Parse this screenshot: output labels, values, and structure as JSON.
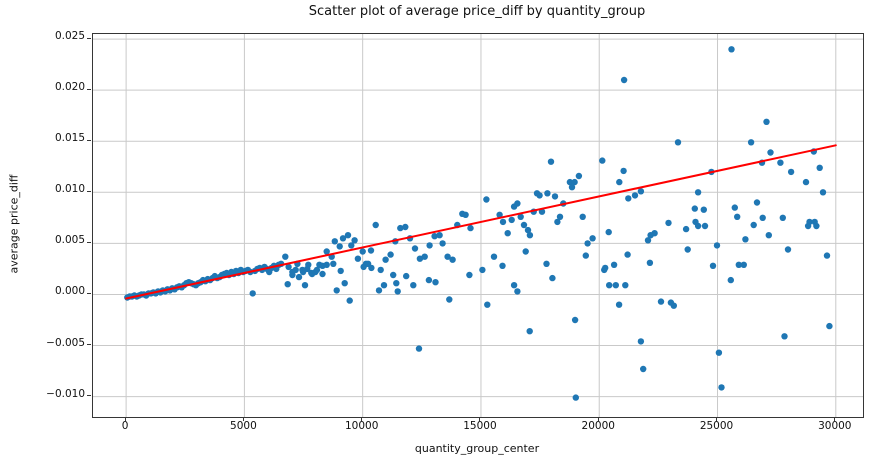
{
  "chart_data": {
    "type": "scatter",
    "title": "Scatter plot of average price_diff by quantity_group",
    "xlabel": "quantity_group_center",
    "ylabel": "average price_diff",
    "xlim": [
      -1400,
      31150
    ],
    "ylim": [
      -0.012,
      0.0255
    ],
    "xticks": [
      0,
      5000,
      10000,
      15000,
      20000,
      25000,
      30000
    ],
    "yticks": [
      -0.01,
      -0.005,
      0.0,
      0.005,
      0.01,
      0.015,
      0.02,
      0.025
    ],
    "grid": true,
    "grid_color": "#c9c9c9",
    "background_color": "#ffffff",
    "series": [
      {
        "name": "average price_diff by quantity group",
        "type": "scatter",
        "color": "#1f77b4",
        "marker_radius": 3.2,
        "points": [
          [
            50,
            -0.0003
          ],
          [
            150,
            -0.0002
          ],
          [
            250,
            -0.0002
          ],
          [
            350,
            -0.0001
          ],
          [
            450,
            -0.0002
          ],
          [
            550,
            -0.0001
          ],
          [
            650,
            0.0
          ],
          [
            750,
            0.0
          ],
          [
            850,
            -0.0001
          ],
          [
            950,
            0.0001
          ],
          [
            1050,
            0.0001
          ],
          [
            1150,
            0.0002
          ],
          [
            1250,
            0.0001
          ],
          [
            1350,
            0.0003
          ],
          [
            1450,
            0.0002
          ],
          [
            1550,
            0.0004
          ],
          [
            1650,
            0.0003
          ],
          [
            1750,
            0.0005
          ],
          [
            1850,
            0.0004
          ],
          [
            1950,
            0.0006
          ],
          [
            2050,
            0.0005
          ],
          [
            2150,
            0.0007
          ],
          [
            2250,
            0.0008
          ],
          [
            2350,
            0.0007
          ],
          [
            2450,
            0.0009
          ],
          [
            2550,
            0.0011
          ],
          [
            2650,
            0.0012
          ],
          [
            2750,
            0.0011
          ],
          [
            2850,
            0.001
          ],
          [
            2950,
            0.0009
          ],
          [
            3050,
            0.0011
          ],
          [
            3150,
            0.0012
          ],
          [
            3250,
            0.0014
          ],
          [
            3350,
            0.0013
          ],
          [
            3450,
            0.0015
          ],
          [
            3550,
            0.0014
          ],
          [
            3650,
            0.0016
          ],
          [
            3750,
            0.0018
          ],
          [
            3850,
            0.0016
          ],
          [
            3950,
            0.0017
          ],
          [
            4050,
            0.0019
          ],
          [
            4150,
            0.002
          ],
          [
            4250,
            0.0021
          ],
          [
            4350,
            0.0019
          ],
          [
            4450,
            0.0022
          ],
          [
            4550,
            0.002
          ],
          [
            4650,
            0.0023
          ],
          [
            4750,
            0.0021
          ],
          [
            4850,
            0.0024
          ],
          [
            4950,
            0.0022
          ],
          [
            5050,
            0.0023
          ],
          [
            5150,
            0.0024
          ],
          [
            5250,
            0.0022
          ],
          [
            5350,
            0.0001
          ],
          [
            5450,
            0.0023
          ],
          [
            5550,
            0.0025
          ],
          [
            5650,
            0.0026
          ],
          [
            5750,
            0.0024
          ],
          [
            5850,
            0.0027
          ],
          [
            5950,
            0.0025
          ],
          [
            6050,
            0.0022
          ],
          [
            6150,
            0.0026
          ],
          [
            6250,
            0.0028
          ],
          [
            6350,
            0.0025
          ],
          [
            6450,
            0.0029
          ],
          [
            6550,
            0.003
          ],
          [
            6730,
            0.0037
          ],
          [
            6870,
            0.0027
          ],
          [
            7030,
            0.0022
          ],
          [
            7240,
            0.003
          ],
          [
            7450,
            0.0024
          ],
          [
            7660,
            0.0025
          ],
          [
            7860,
            0.002
          ],
          [
            8070,
            0.0024
          ],
          [
            8300,
            0.002
          ],
          [
            8480,
            0.0042
          ],
          [
            8690,
            0.0037
          ],
          [
            8820,
            0.0052
          ],
          [
            9030,
            0.0047
          ],
          [
            9170,
            0.0055
          ],
          [
            9380,
            0.0058
          ],
          [
            9520,
            0.0048
          ],
          [
            9660,
            0.0053
          ],
          [
            9800,
            0.0035
          ],
          [
            10000,
            0.0042
          ],
          [
            10140,
            0.003
          ],
          [
            10350,
            0.0043
          ],
          [
            10550,
            0.0068
          ],
          [
            10760,
            0.0024
          ],
          [
            10970,
            0.0034
          ],
          [
            11180,
            0.0039
          ],
          [
            11380,
            0.0052
          ],
          [
            11590,
            0.0065
          ],
          [
            11800,
            0.0066
          ],
          [
            12000,
            0.0055
          ],
          [
            12210,
            0.0045
          ],
          [
            12420,
            0.0035
          ],
          [
            12620,
            0.0037
          ],
          [
            12830,
            0.0048
          ],
          [
            13040,
            0.0057
          ],
          [
            13250,
            0.0058
          ],
          [
            13380,
            0.005
          ],
          [
            13590,
            0.0037
          ],
          [
            13800,
            0.0034
          ],
          [
            14000,
            0.0068
          ],
          [
            14210,
            0.0079
          ],
          [
            14350,
            0.0078
          ],
          [
            14560,
            0.0065
          ],
          [
            6830,
            0.001
          ],
          [
            7030,
            0.0019
          ],
          [
            7170,
            0.0024
          ],
          [
            7310,
            0.0017
          ],
          [
            7480,
            0.0022
          ],
          [
            7560,
            0.0009
          ],
          [
            7700,
            0.0029
          ],
          [
            7830,
            0.0021
          ],
          [
            8000,
            0.0022
          ],
          [
            8170,
            0.0029
          ],
          [
            8300,
            0.0028
          ],
          [
            8480,
            0.0029
          ],
          [
            8760,
            0.003
          ],
          [
            8900,
            0.0004
          ],
          [
            9070,
            0.0023
          ],
          [
            9240,
            0.0011
          ],
          [
            9450,
            -0.0006
          ],
          [
            10040,
            0.0027
          ],
          [
            10230,
            0.003
          ],
          [
            10370,
            0.0026
          ],
          [
            10690,
            0.0004
          ],
          [
            10900,
            0.0009
          ],
          [
            11290,
            0.0019
          ],
          [
            11420,
            0.0011
          ],
          [
            11480,
            0.0003
          ],
          [
            11840,
            0.0018
          ],
          [
            12140,
            0.0009
          ],
          [
            12380,
            -0.0053
          ],
          [
            12800,
            0.0014
          ],
          [
            13080,
            0.0012
          ],
          [
            13660,
            -0.0005
          ],
          [
            14510,
            0.0019
          ],
          [
            15230,
            0.0093
          ],
          [
            15790,
            0.0078
          ],
          [
            15930,
            0.0071
          ],
          [
            16130,
            0.006
          ],
          [
            16300,
            0.0073
          ],
          [
            16400,
            0.0086
          ],
          [
            16540,
            0.0089
          ],
          [
            16680,
            0.0076
          ],
          [
            16820,
            0.0068
          ],
          [
            16990,
            0.0063
          ],
          [
            17070,
            0.0058
          ],
          [
            17230,
            0.0081
          ],
          [
            17370,
            0.0099
          ],
          [
            17480,
            0.0097
          ],
          [
            17580,
            0.0081
          ],
          [
            17810,
            0.0099
          ],
          [
            17960,
            0.013
          ],
          [
            18130,
            0.0096
          ],
          [
            18230,
            0.0071
          ],
          [
            18340,
            0.0076
          ],
          [
            18480,
            0.0089
          ],
          [
            18760,
            0.011
          ],
          [
            18850,
            0.0105
          ],
          [
            18960,
            0.011
          ],
          [
            19140,
            0.0116
          ],
          [
            19300,
            0.0076
          ],
          [
            19510,
            0.005
          ],
          [
            19720,
            0.0055
          ],
          [
            20130,
            0.0131
          ],
          [
            20400,
            0.0061
          ],
          [
            20850,
            0.011
          ],
          [
            21030,
            0.0121
          ],
          [
            21230,
            0.0094
          ],
          [
            21510,
            0.0097
          ],
          [
            21760,
            0.0101
          ],
          [
            22060,
            0.0053
          ],
          [
            22170,
            0.0058
          ],
          [
            22340,
            0.006
          ],
          [
            21050,
            0.021
          ],
          [
            22930,
            0.007
          ],
          [
            15060,
            0.0024
          ],
          [
            15270,
            -0.001
          ],
          [
            15550,
            0.0037
          ],
          [
            15910,
            0.0028
          ],
          [
            16400,
            0.0009
          ],
          [
            16540,
            0.0003
          ],
          [
            16890,
            0.0042
          ],
          [
            17060,
            -0.0036
          ],
          [
            17770,
            0.003
          ],
          [
            18020,
            0.0016
          ],
          [
            18980,
            -0.0025
          ],
          [
            19010,
            -0.0101
          ],
          [
            19430,
            0.0038
          ],
          [
            20210,
            0.0024
          ],
          [
            20250,
            0.0026
          ],
          [
            20420,
            0.0009
          ],
          [
            20630,
            0.0029
          ],
          [
            20700,
            0.0009
          ],
          [
            20840,
            -0.001
          ],
          [
            21100,
            0.0009
          ],
          [
            21200,
            0.0039
          ],
          [
            21760,
            -0.0046
          ],
          [
            21860,
            -0.0073
          ],
          [
            22140,
            0.0031
          ],
          [
            22610,
            -0.0007
          ],
          [
            23030,
            -0.0008
          ],
          [
            25590,
            0.024
          ],
          [
            23330,
            0.0149
          ],
          [
            26420,
            0.0149
          ],
          [
            27070,
            0.0169
          ],
          [
            27240,
            0.0139
          ],
          [
            26880,
            0.0129
          ],
          [
            27660,
            0.0129
          ],
          [
            24740,
            0.012
          ],
          [
            28110,
            0.012
          ],
          [
            28740,
            0.011
          ],
          [
            29070,
            0.014
          ],
          [
            29320,
            0.0124
          ],
          [
            24180,
            0.01
          ],
          [
            29460,
            0.01
          ],
          [
            24040,
            0.0084
          ],
          [
            24420,
            0.0083
          ],
          [
            25730,
            0.0085
          ],
          [
            26670,
            0.009
          ],
          [
            26910,
            0.0075
          ],
          [
            27760,
            0.0075
          ],
          [
            28890,
            0.0071
          ],
          [
            29110,
            0.0071
          ],
          [
            24070,
            0.0071
          ],
          [
            25830,
            0.0076
          ],
          [
            23670,
            0.0064
          ],
          [
            24180,
            0.0067
          ],
          [
            24470,
            0.0067
          ],
          [
            26530,
            0.0068
          ],
          [
            26180,
            0.0054
          ],
          [
            27170,
            0.0058
          ],
          [
            28830,
            0.0067
          ],
          [
            29180,
            0.0067
          ],
          [
            23740,
            0.0044
          ],
          [
            24980,
            0.0048
          ],
          [
            27980,
            0.0044
          ],
          [
            29630,
            0.0038
          ],
          [
            24810,
            0.0028
          ],
          [
            25900,
            0.0029
          ],
          [
            26110,
            0.0029
          ],
          [
            25560,
            0.0014
          ],
          [
            23150,
            -0.0011
          ],
          [
            29730,
            -0.0031
          ],
          [
            27830,
            -0.0041
          ],
          [
            25060,
            -0.0057
          ],
          [
            25170,
            -0.0091
          ]
        ]
      },
      {
        "name": "linear trend line",
        "type": "line",
        "color": "#ff0000",
        "linewidth": 2,
        "points": [
          [
            0,
            -0.0004
          ],
          [
            30000,
            0.0146
          ]
        ]
      }
    ]
  }
}
